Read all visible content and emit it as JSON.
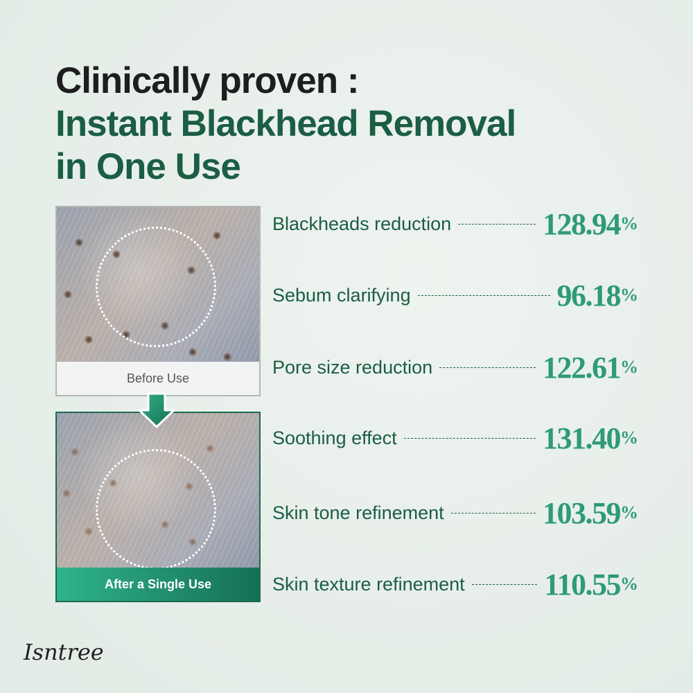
{
  "headline": {
    "line1": "Clinically proven :",
    "line2": "Instant Blackhead Removal",
    "line3": "in One Use"
  },
  "comparison": {
    "before_label": "Before Use",
    "after_label": "After a Single Use"
  },
  "metrics": [
    {
      "label": "Blackheads reduction",
      "value": "128.94",
      "unit": "%"
    },
    {
      "label": "Sebum clarifying",
      "value": "96.18",
      "unit": "%"
    },
    {
      "label": "Pore size reduction",
      "value": "122.61",
      "unit": "%"
    },
    {
      "label": "Soothing effect",
      "value": "131.40",
      "unit": "%"
    },
    {
      "label": "Skin tone refinement",
      "value": "103.59",
      "unit": "%"
    },
    {
      "label": "Skin texture refinement",
      "value": "110.55",
      "unit": "%"
    }
  ],
  "brand": {
    "logo": "Isntree"
  },
  "colors": {
    "accent": "#2e9a7a",
    "heading_green": "#1b5d45"
  }
}
